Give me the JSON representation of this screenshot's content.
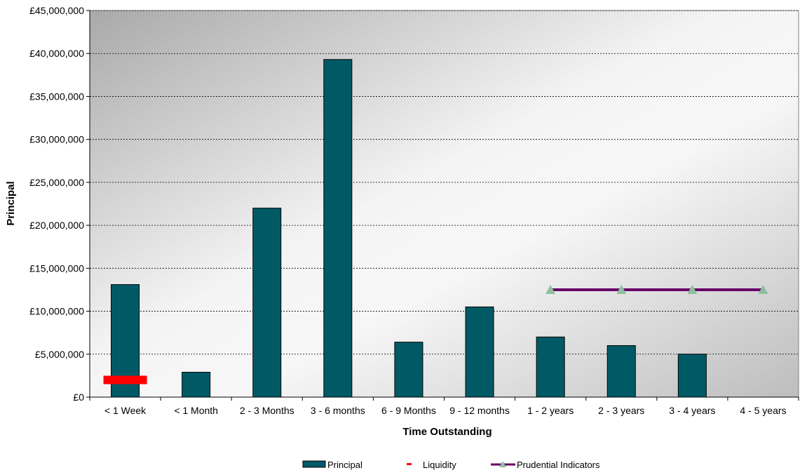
{
  "chart_data": {
    "type": "bar",
    "xlabel": "Time Outstanding",
    "ylabel": "Principal",
    "ylim": [
      0,
      45000000
    ],
    "y_tick_values": [
      0,
      5000000,
      10000000,
      15000000,
      20000000,
      25000000,
      30000000,
      35000000,
      40000000,
      45000000
    ],
    "y_tick_labels": [
      "£0",
      "£5,000,000",
      "£10,000,000",
      "£15,000,000",
      "£20,000,000",
      "£25,000,000",
      "£30,000,000",
      "£35,000,000",
      "£40,000,000",
      "£45,000,000"
    ],
    "grid": true,
    "legend_position": "bottom",
    "categories": [
      "< 1 Week",
      "< 1 Month",
      "2 - 3 Months",
      "3 - 6 months",
      "6 - 9 Months",
      "9 - 12 months",
      "1 - 2 years",
      "2 - 3 years",
      "3 - 4 years",
      "4 - 5 years"
    ],
    "series": [
      {
        "name": "Principal",
        "kind": "bar",
        "color": "#005a66",
        "values": [
          13100000,
          2900000,
          22000000,
          39300000,
          6400000,
          10500000,
          7000000,
          6000000,
          5000000,
          0
        ]
      },
      {
        "name": "Liquidity",
        "kind": "marker",
        "color": "#ff0000",
        "values": [
          2000000,
          null,
          null,
          null,
          null,
          null,
          null,
          null,
          null,
          null
        ]
      },
      {
        "name": "Prudential Indicators",
        "kind": "line",
        "color": "#660066",
        "marker_color": "#8fbf9f",
        "values": [
          null,
          null,
          null,
          null,
          null,
          null,
          12500000,
          12500000,
          12500000,
          12500000
        ]
      }
    ]
  }
}
